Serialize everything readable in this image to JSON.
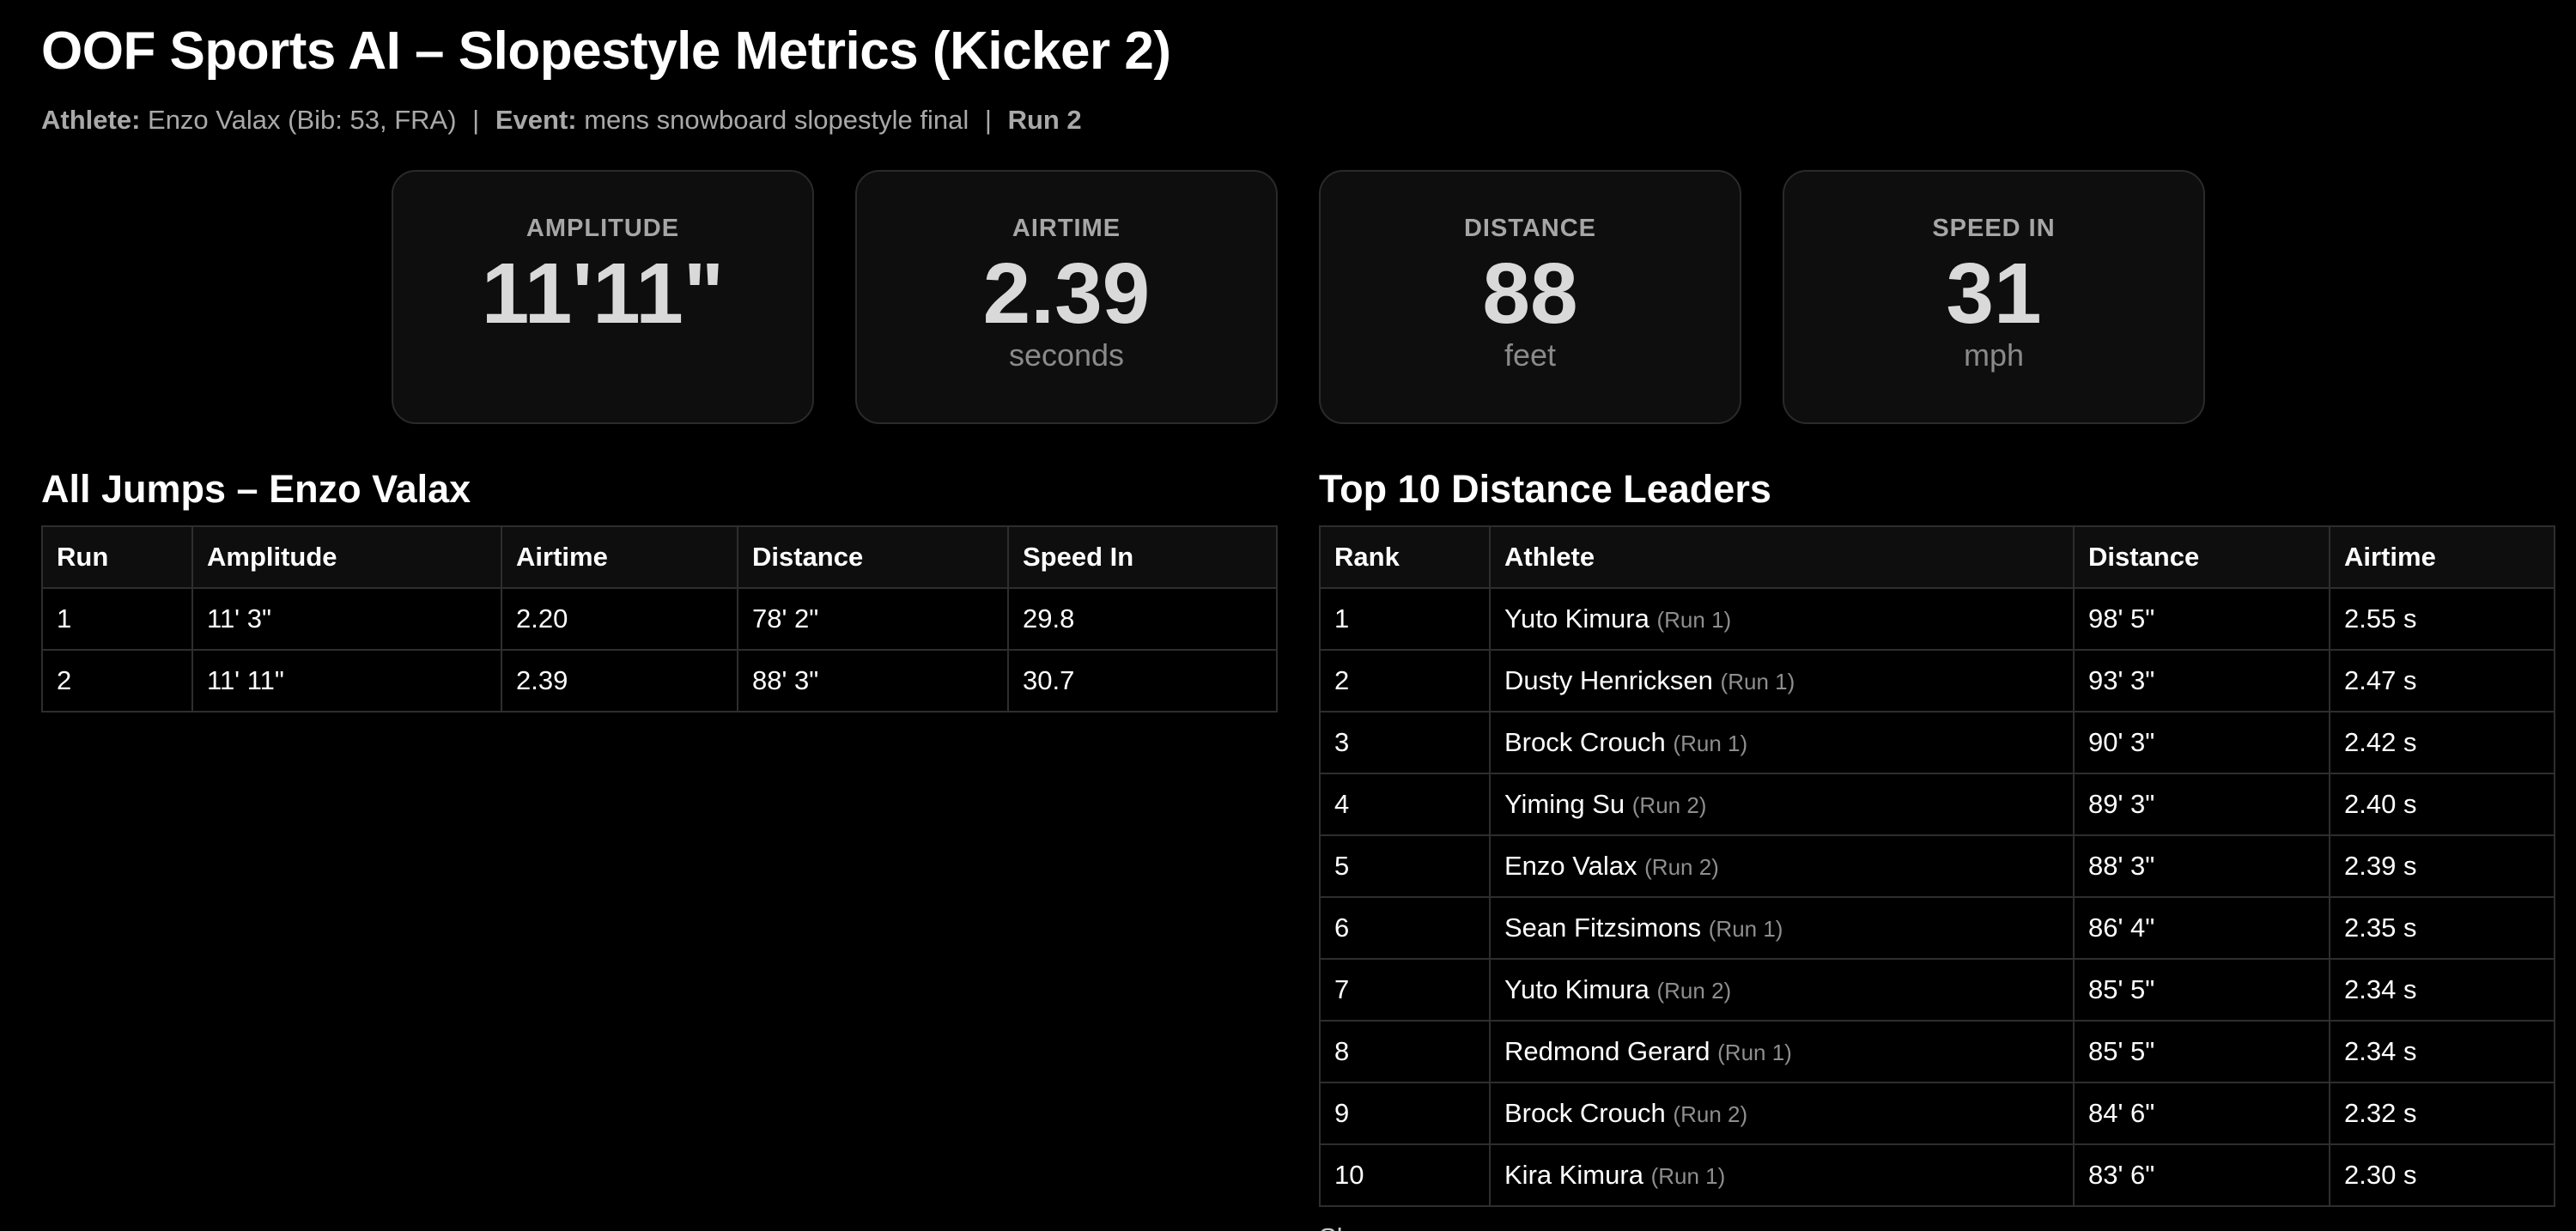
{
  "header": {
    "title": "OOF Sports AI – Slopestyle Metrics (Kicker 2)",
    "athlete_label": "Athlete:",
    "athlete_value": "Enzo Valax (Bib: 53, FRA)",
    "separator": "|",
    "event_label": "Event:",
    "event_value": "mens snowboard slopestyle final",
    "run_label": "Run 2"
  },
  "cards": [
    {
      "label": "AMPLITUDE",
      "value": "11'11\"",
      "unit": ""
    },
    {
      "label": "AIRTIME",
      "value": "2.39",
      "unit": "seconds"
    },
    {
      "label": "DISTANCE",
      "value": "88",
      "unit": "feet"
    },
    {
      "label": "SPEED IN",
      "value": "31",
      "unit": "mph"
    }
  ],
  "jumps": {
    "title": "All Jumps – Enzo Valax",
    "columns": [
      "Run",
      "Amplitude",
      "Airtime",
      "Distance",
      "Speed In"
    ],
    "rows": [
      [
        "1",
        "11' 3\"",
        "2.20",
        "78' 2\"",
        "29.8"
      ],
      [
        "2",
        "11' 11\"",
        "2.39",
        "88' 3\"",
        "30.7"
      ]
    ]
  },
  "leaders": {
    "title": "Top 10 Distance Leaders",
    "columns": [
      "Rank",
      "Athlete",
      "Distance",
      "Airtime"
    ],
    "rows": [
      {
        "rank": "1",
        "athlete": "Yuto Kimura",
        "run": "(Run 1)",
        "distance": "98' 5\"",
        "airtime": "2.55 s"
      },
      {
        "rank": "2",
        "athlete": "Dusty Henricksen",
        "run": "(Run 1)",
        "distance": "93' 3\"",
        "airtime": "2.47 s"
      },
      {
        "rank": "3",
        "athlete": "Brock Crouch",
        "run": "(Run 1)",
        "distance": "90' 3\"",
        "airtime": "2.42 s"
      },
      {
        "rank": "4",
        "athlete": "Yiming Su",
        "run": "(Run 2)",
        "distance": "89' 3\"",
        "airtime": "2.40 s"
      },
      {
        "rank": "5",
        "athlete": "Enzo Valax",
        "run": "(Run 2)",
        "distance": "88' 3\"",
        "airtime": "2.39 s"
      },
      {
        "rank": "6",
        "athlete": "Sean Fitzsimons",
        "run": "(Run 1)",
        "distance": "86' 4\"",
        "airtime": "2.35 s"
      },
      {
        "rank": "7",
        "athlete": "Yuto Kimura",
        "run": "(Run 2)",
        "distance": "85' 5\"",
        "airtime": "2.34 s"
      },
      {
        "rank": "8",
        "athlete": "Redmond Gerard",
        "run": "(Run 1)",
        "distance": "85' 5\"",
        "airtime": "2.34 s"
      },
      {
        "rank": "9",
        "athlete": "Brock Crouch",
        "run": "(Run 2)",
        "distance": "84' 6\"",
        "airtime": "2.32 s"
      },
      {
        "rank": "10",
        "athlete": "Kira Kimura",
        "run": "(Run 1)",
        "distance": "83' 6\"",
        "airtime": "2.30 s"
      }
    ]
  },
  "footer": {
    "cut_text": "Show..."
  }
}
